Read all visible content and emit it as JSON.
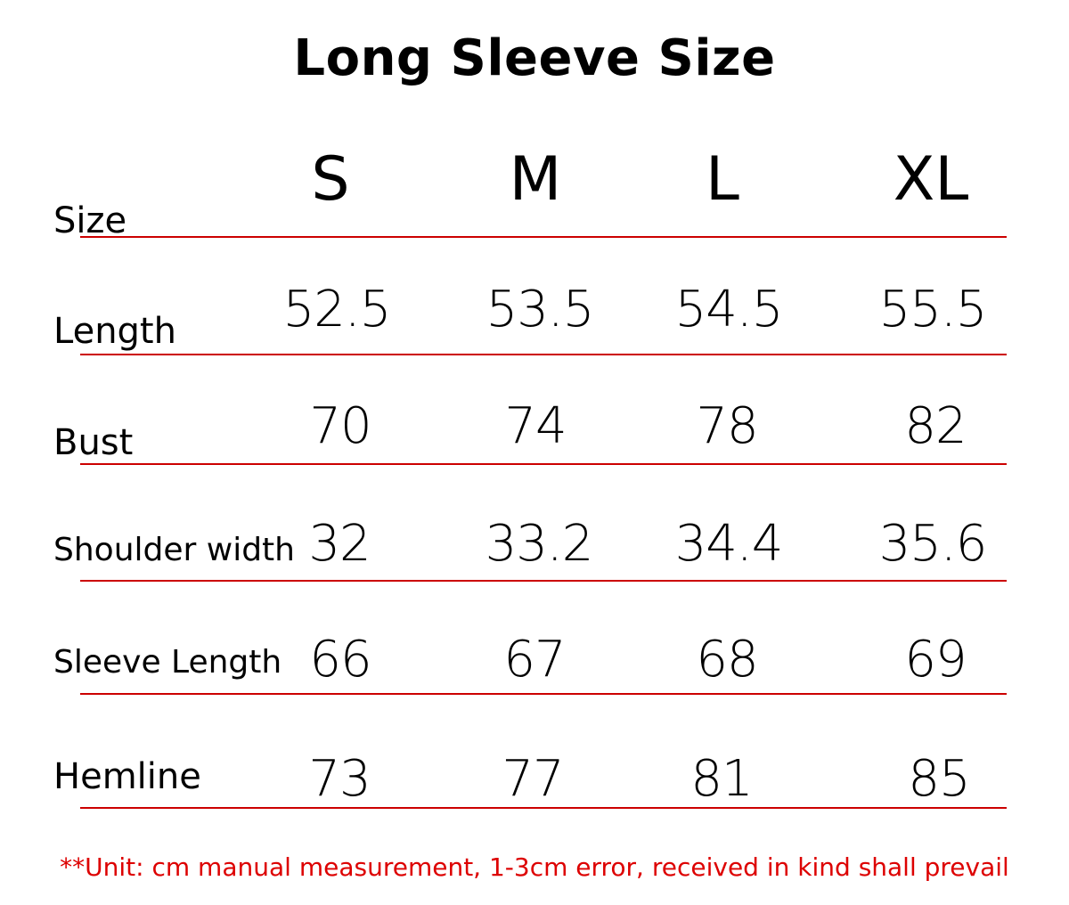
{
  "title": "Long Sleeve Size",
  "size_label": "Size",
  "sizes": [
    "S",
    "M",
    "L",
    "XL"
  ],
  "rows": [
    {
      "label": "Length",
      "values": [
        "52.5",
        "53.5",
        "54.5",
        "55.5"
      ]
    },
    {
      "label": "Bust",
      "values": [
        "70",
        "74",
        "78",
        "82"
      ]
    },
    {
      "label": "Shoulder width",
      "values": [
        "32",
        "33.2",
        "34.4",
        "35.6"
      ]
    },
    {
      "label": "Sleeve Length",
      "values": [
        "66",
        "67",
        "68",
        "69"
      ]
    },
    {
      "label": "Hemline",
      "values": [
        "73",
        "77",
        "81",
        "85"
      ]
    }
  ],
  "note": "**Unit: cm manual measurement, 1-3cm error, received in kind shall prevail",
  "colors": {
    "rule": "#cc0000",
    "note": "#dd0000",
    "text": "#000000"
  }
}
